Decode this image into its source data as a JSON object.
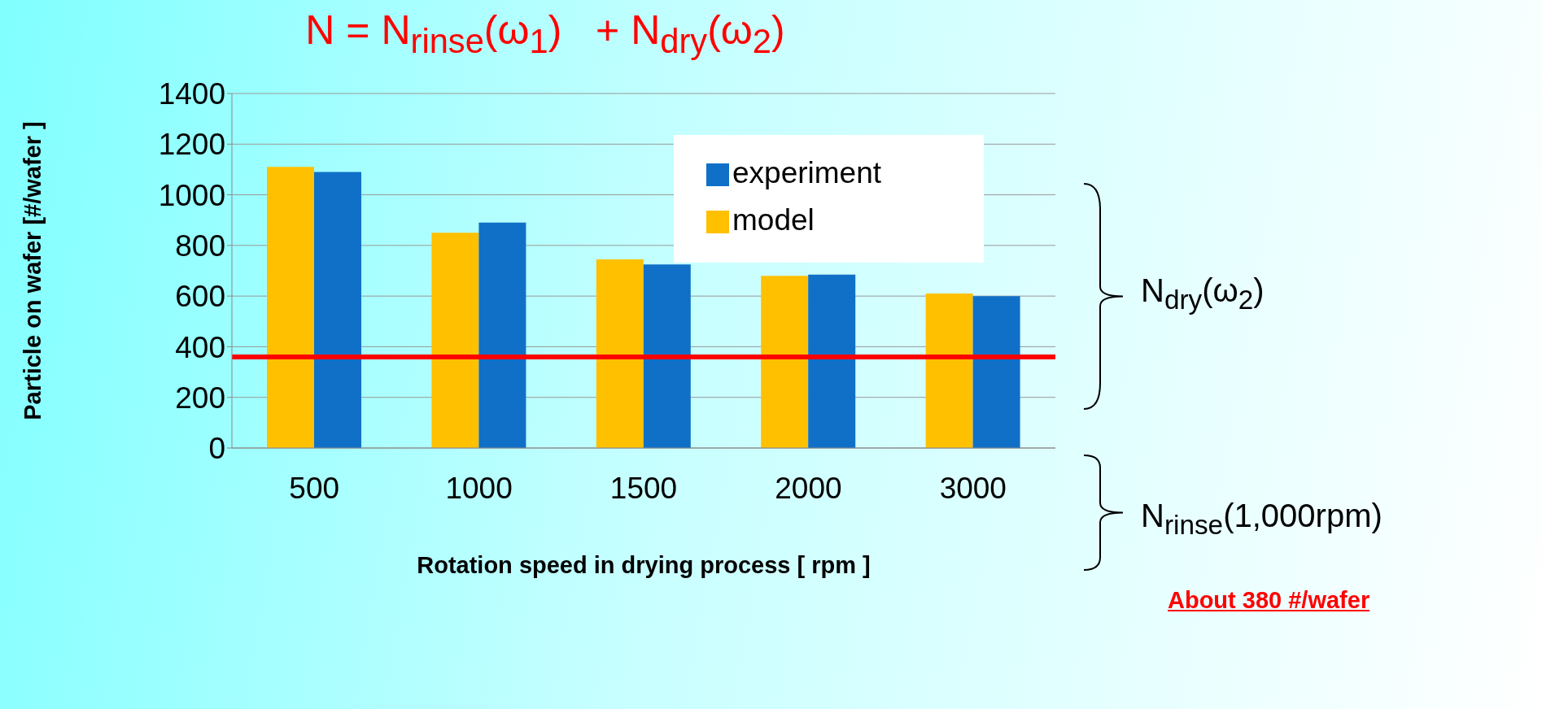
{
  "chart_data": {
    "type": "bar",
    "title": "N = N$_{rinse}$(ω$_{1}$)   + N$_{dry}$(ω$_{2}$)",
    "xlabel": "Rotation speed in drying process [ rpm ]",
    "ylabel": "Particle on wafer [#/wafer ]",
    "categories": [
      "500",
      "1000",
      "1500",
      "2000",
      "3000"
    ],
    "series": [
      {
        "name": "model",
        "color": "#ffc000",
        "values": [
          1110,
          850,
          745,
          680,
          610
        ]
      },
      {
        "name": "experiment",
        "color": "#1070c8",
        "values": [
          1090,
          890,
          725,
          685,
          600
        ]
      }
    ],
    "ylim": [
      0,
      1400
    ],
    "yticks": [
      0,
      200,
      400,
      600,
      800,
      1000,
      1200,
      1400
    ],
    "grid": "y",
    "legend": "top right",
    "ref_lines": [
      {
        "axis": "y",
        "value": 360,
        "color": "#ff0000"
      }
    ],
    "annotations": [
      "N$_{dry}$(ω$_{2}$)",
      "N$_{rinse}$(1,000rpm)",
      "About 380 #/wafer"
    ]
  }
}
